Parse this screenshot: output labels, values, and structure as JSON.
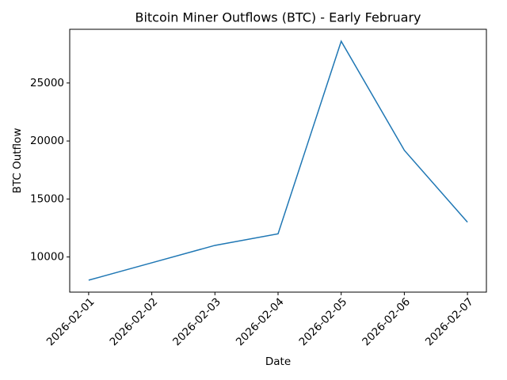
{
  "chart_data": {
    "type": "line",
    "title": "Bitcoin Miner Outflows (BTC) - Early February",
    "x_label": "Date",
    "y_label": "BTC Outflow",
    "x": [
      "2026-02-01",
      "2026-02-02",
      "2026-02-03",
      "2026-02-04",
      "2026-02-05",
      "2026-02-06",
      "2026-02-07"
    ],
    "series": [
      {
        "name": "BTC Outflow",
        "color": "#1f77b4",
        "values": [
          8000,
          9500,
          11000,
          12000,
          28600,
          19200,
          13000
        ]
      }
    ],
    "ylim": [
      6970,
      29630
    ],
    "yticks": [
      10000,
      15000,
      20000,
      25000
    ]
  }
}
